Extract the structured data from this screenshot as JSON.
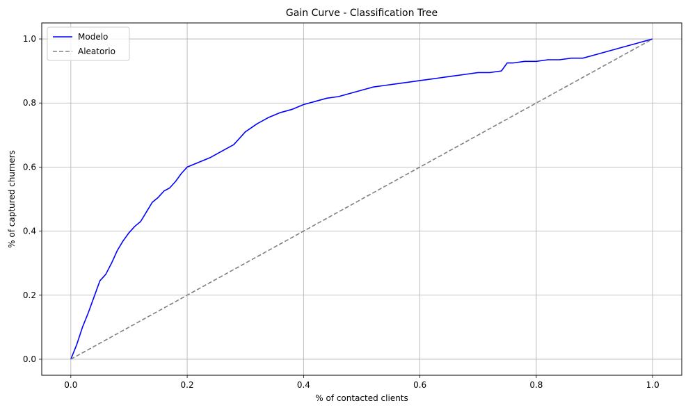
{
  "chart_data": {
    "type": "line",
    "title": "Gain Curve - Classification Tree",
    "xlabel": "% of contacted clients",
    "ylabel": "% of captured churners",
    "xlim": [
      -0.05,
      1.05
    ],
    "ylim": [
      -0.05,
      1.05
    ],
    "x_ticks": [
      0.0,
      0.2,
      0.4,
      0.6,
      0.8,
      1.0
    ],
    "y_ticks": [
      0.0,
      0.2,
      0.4,
      0.6,
      0.8,
      1.0
    ],
    "x_tick_labels": [
      "0.0",
      "0.2",
      "0.4",
      "0.6",
      "0.8",
      "1.0"
    ],
    "y_tick_labels": [
      "0.0",
      "0.2",
      "0.4",
      "0.6",
      "0.8",
      "1.0"
    ],
    "grid": true,
    "legend_position": "top-left",
    "series": [
      {
        "name": "Modelo",
        "color": "#0000ff",
        "style": "solid",
        "x": [
          0.0,
          0.01,
          0.02,
          0.03,
          0.04,
          0.05,
          0.06,
          0.07,
          0.08,
          0.09,
          0.1,
          0.11,
          0.12,
          0.13,
          0.14,
          0.15,
          0.16,
          0.17,
          0.18,
          0.19,
          0.2,
          0.22,
          0.24,
          0.26,
          0.28,
          0.3,
          0.32,
          0.34,
          0.36,
          0.38,
          0.4,
          0.42,
          0.44,
          0.46,
          0.48,
          0.5,
          0.52,
          0.54,
          0.56,
          0.58,
          0.6,
          0.62,
          0.64,
          0.66,
          0.68,
          0.7,
          0.72,
          0.74,
          0.75,
          0.76,
          0.78,
          0.8,
          0.82,
          0.84,
          0.86,
          0.88,
          0.9,
          0.92,
          0.94,
          0.96,
          0.97,
          0.98,
          1.0
        ],
        "y": [
          0.0,
          0.045,
          0.1,
          0.145,
          0.195,
          0.245,
          0.265,
          0.3,
          0.34,
          0.37,
          0.395,
          0.415,
          0.43,
          0.46,
          0.49,
          0.505,
          0.525,
          0.535,
          0.555,
          0.58,
          0.6,
          0.615,
          0.63,
          0.65,
          0.67,
          0.71,
          0.735,
          0.755,
          0.77,
          0.78,
          0.795,
          0.805,
          0.815,
          0.82,
          0.83,
          0.84,
          0.85,
          0.855,
          0.86,
          0.865,
          0.87,
          0.875,
          0.88,
          0.885,
          0.89,
          0.895,
          0.895,
          0.9,
          0.925,
          0.925,
          0.93,
          0.93,
          0.935,
          0.935,
          0.94,
          0.94,
          0.95,
          0.96,
          0.97,
          0.98,
          0.985,
          0.99,
          1.0
        ]
      },
      {
        "name": "Aleatorio",
        "color": "#808080",
        "style": "dashed",
        "x": [
          0.0,
          1.0
        ],
        "y": [
          0.0,
          1.0
        ]
      }
    ]
  }
}
